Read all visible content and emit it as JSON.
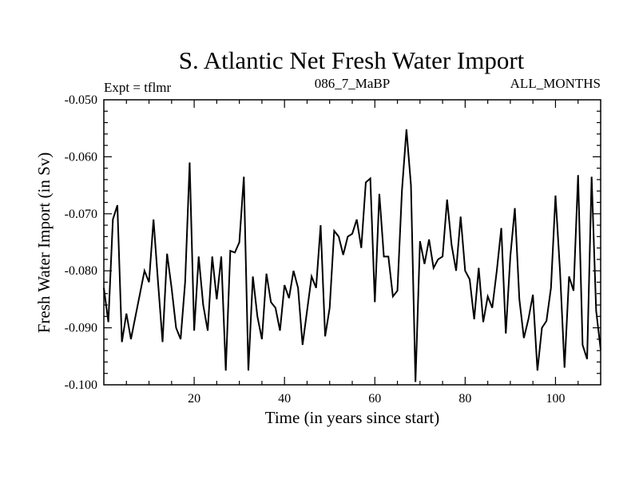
{
  "chart_data": {
    "type": "line",
    "title": "S. Atlantic Net Fresh Water Import",
    "subtitle_left": "Expt = tflmr",
    "subtitle_center": "086_7_MaBP",
    "subtitle_right": "ALL_MONTHS",
    "xlabel": "Time (in years since start)",
    "ylabel": "Fresh Water Import (in Sv)",
    "xlim": [
      0,
      110
    ],
    "ylim": [
      -0.1,
      -0.05
    ],
    "xticks": [
      20,
      40,
      60,
      80,
      100
    ],
    "xtick_labels": [
      "20",
      "40",
      "60",
      "80",
      "100"
    ],
    "yticks": [
      -0.1,
      -0.09,
      -0.08,
      -0.07,
      -0.06,
      -0.05
    ],
    "ytick_labels": [
      "-0.100",
      "-0.090",
      "-0.080",
      "-0.070",
      "-0.060",
      "-0.050"
    ],
    "grid": false,
    "line_color": "#000000",
    "series": [
      {
        "name": "fresh water import",
        "x": [
          0,
          1,
          2,
          3,
          4,
          5,
          6,
          7,
          8,
          9,
          10,
          11,
          12,
          13,
          14,
          15,
          16,
          17,
          18,
          19,
          20,
          21,
          22,
          23,
          24,
          25,
          26,
          27,
          28,
          29,
          30,
          31,
          32,
          33,
          34,
          35,
          36,
          37,
          38,
          39,
          40,
          41,
          42,
          43,
          44,
          45,
          46,
          47,
          48,
          49,
          50,
          51,
          52,
          53,
          54,
          55,
          56,
          57,
          58,
          59,
          60,
          61,
          62,
          63,
          64,
          65,
          66,
          67,
          68,
          69,
          70,
          71,
          72,
          73,
          74,
          75,
          76,
          77,
          78,
          79,
          80,
          81,
          82,
          83,
          84,
          85,
          86,
          87,
          88,
          89,
          90,
          91,
          92,
          93,
          94,
          95,
          96,
          97,
          98,
          99,
          100,
          101,
          102,
          103,
          104,
          105,
          106,
          107,
          108,
          109,
          110
        ],
        "values": [
          -0.083,
          -0.089,
          -0.071,
          -0.0685,
          -0.0925,
          -0.0875,
          -0.092,
          -0.088,
          -0.084,
          -0.08,
          -0.082,
          -0.071,
          -0.082,
          -0.0925,
          -0.077,
          -0.083,
          -0.09,
          -0.092,
          -0.082,
          -0.061,
          -0.0905,
          -0.0775,
          -0.086,
          -0.0905,
          -0.0775,
          -0.085,
          -0.0775,
          -0.0975,
          -0.0765,
          -0.0768,
          -0.075,
          -0.0635,
          -0.0975,
          -0.081,
          -0.088,
          -0.092,
          -0.0805,
          -0.0855,
          -0.0865,
          -0.0905,
          -0.0825,
          -0.0848,
          -0.08,
          -0.083,
          -0.093,
          -0.087,
          -0.081,
          -0.083,
          -0.072,
          -0.0915,
          -0.0865,
          -0.073,
          -0.074,
          -0.0772,
          -0.074,
          -0.0735,
          -0.071,
          -0.076,
          -0.0645,
          -0.0638,
          -0.0855,
          -0.0665,
          -0.0775,
          -0.0775,
          -0.0845,
          -0.0835,
          -0.066,
          -0.0552,
          -0.065,
          -0.0995,
          -0.0748,
          -0.0788,
          -0.0745,
          -0.0795,
          -0.078,
          -0.0775,
          -0.0675,
          -0.0755,
          -0.08,
          -0.0705,
          -0.08,
          -0.0815,
          -0.0885,
          -0.0795,
          -0.089,
          -0.0845,
          -0.0865,
          -0.08,
          -0.0725,
          -0.091,
          -0.0775,
          -0.069,
          -0.085,
          -0.0918,
          -0.0885,
          -0.0842,
          -0.0975,
          -0.09,
          -0.0888,
          -0.083,
          -0.0668,
          -0.08,
          -0.097,
          -0.081,
          -0.0835,
          -0.0632,
          -0.093,
          -0.0955,
          -0.0635,
          -0.087,
          -0.0938
        ]
      }
    ]
  }
}
